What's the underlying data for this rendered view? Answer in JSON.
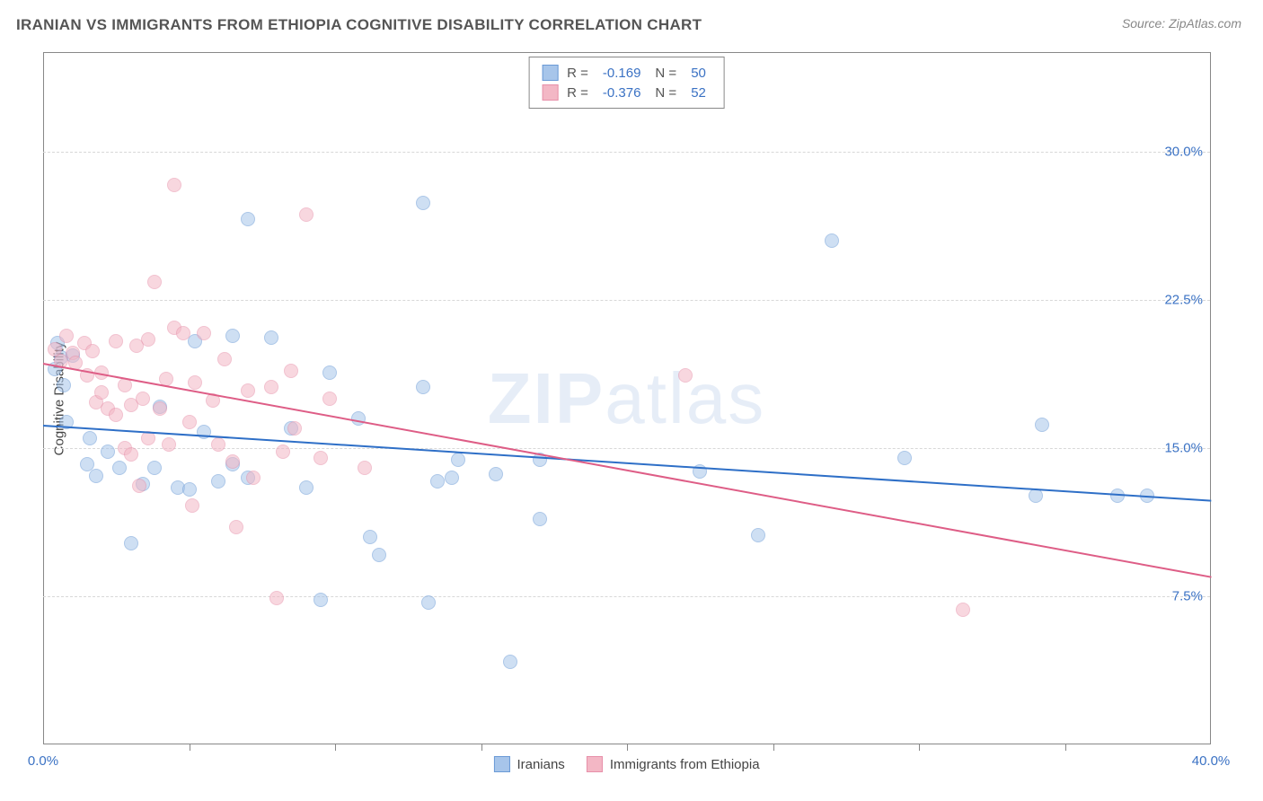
{
  "title": "IRANIAN VS IMMIGRANTS FROM ETHIOPIA COGNITIVE DISABILITY CORRELATION CHART",
  "source": "Source: ZipAtlas.com",
  "y_label": "Cognitive Disability",
  "watermark_bold": "ZIP",
  "watermark_rest": "atlas",
  "chart": {
    "type": "scatter",
    "xlim": [
      0,
      40
    ],
    "ylim": [
      0,
      35
    ],
    "x_ticks": [
      0,
      40
    ],
    "x_tick_labels": [
      "0.0%",
      "40.0%"
    ],
    "x_minor_ticks": [
      5,
      10,
      15,
      20,
      25,
      30,
      35
    ],
    "y_ticks": [
      7.5,
      15.0,
      22.5,
      30.0
    ],
    "y_tick_labels": [
      "7.5%",
      "15.0%",
      "22.5%",
      "30.0%"
    ],
    "grid_color": "#d8d8d8",
    "background": "#ffffff",
    "axis_color": "#888888",
    "marker_radius": 8,
    "marker_opacity": 0.55,
    "series": [
      {
        "name": "Iranians",
        "color_fill": "#a7c5ea",
        "color_stroke": "#6a9ad6",
        "R": "-0.169",
        "N": "50",
        "trend": {
          "x1": 0,
          "y1": 16.2,
          "x2": 40,
          "y2": 12.4,
          "color": "#2e6fc7",
          "width": 2
        },
        "points": [
          [
            0.4,
            19.0
          ],
          [
            0.5,
            20.3
          ],
          [
            0.6,
            19.6
          ],
          [
            0.7,
            18.2
          ],
          [
            1.0,
            19.7
          ],
          [
            0.8,
            16.3
          ],
          [
            1.5,
            14.2
          ],
          [
            1.6,
            15.5
          ],
          [
            1.8,
            13.6
          ],
          [
            2.2,
            14.8
          ],
          [
            2.6,
            14.0
          ],
          [
            3.0,
            10.2
          ],
          [
            3.4,
            13.2
          ],
          [
            3.8,
            14.0
          ],
          [
            4.0,
            17.1
          ],
          [
            4.6,
            13.0
          ],
          [
            5.0,
            12.9
          ],
          [
            5.2,
            20.4
          ],
          [
            5.5,
            15.8
          ],
          [
            6.0,
            13.3
          ],
          [
            6.5,
            20.7
          ],
          [
            6.5,
            14.2
          ],
          [
            7.0,
            13.5
          ],
          [
            7.0,
            26.6
          ],
          [
            7.8,
            20.6
          ],
          [
            8.5,
            16.0
          ],
          [
            9.0,
            13.0
          ],
          [
            9.5,
            7.3
          ],
          [
            9.8,
            18.8
          ],
          [
            10.8,
            16.5
          ],
          [
            11.2,
            10.5
          ],
          [
            11.5,
            9.6
          ],
          [
            13.0,
            27.4
          ],
          [
            13.0,
            18.1
          ],
          [
            13.2,
            7.2
          ],
          [
            13.5,
            13.3
          ],
          [
            14.0,
            13.5
          ],
          [
            14.2,
            14.4
          ],
          [
            15.5,
            13.7
          ],
          [
            16.0,
            4.2
          ],
          [
            17.0,
            14.4
          ],
          [
            17.0,
            11.4
          ],
          [
            22.5,
            13.8
          ],
          [
            24.5,
            10.6
          ],
          [
            27.0,
            25.5
          ],
          [
            29.5,
            14.5
          ],
          [
            34.2,
            16.2
          ],
          [
            34.0,
            12.6
          ],
          [
            36.8,
            12.6
          ],
          [
            37.8,
            12.6
          ]
        ]
      },
      {
        "name": "Immigrants from Ethiopia",
        "color_fill": "#f3b7c5",
        "color_stroke": "#e790a9",
        "R": "-0.376",
        "N": "52",
        "trend": {
          "x1": 0,
          "y1": 19.3,
          "x2": 40,
          "y2": 8.5,
          "color": "#de5d86",
          "width": 2
        },
        "points": [
          [
            0.4,
            20.0
          ],
          [
            0.6,
            19.4
          ],
          [
            0.8,
            20.7
          ],
          [
            1.0,
            19.8
          ],
          [
            1.1,
            19.3
          ],
          [
            1.4,
            20.3
          ],
          [
            1.5,
            18.7
          ],
          [
            1.7,
            19.9
          ],
          [
            1.8,
            17.3
          ],
          [
            2.0,
            18.8
          ],
          [
            2.0,
            17.8
          ],
          [
            2.2,
            17.0
          ],
          [
            2.5,
            20.4
          ],
          [
            2.5,
            16.7
          ],
          [
            2.8,
            18.2
          ],
          [
            2.8,
            15.0
          ],
          [
            3.0,
            17.2
          ],
          [
            3.2,
            20.2
          ],
          [
            3.3,
            13.1
          ],
          [
            3.4,
            17.5
          ],
          [
            3.6,
            20.5
          ],
          [
            3.6,
            15.5
          ],
          [
            3.8,
            23.4
          ],
          [
            4.0,
            17.0
          ],
          [
            4.2,
            18.5
          ],
          [
            4.3,
            15.2
          ],
          [
            4.5,
            21.1
          ],
          [
            4.5,
            28.3
          ],
          [
            4.8,
            20.8
          ],
          [
            5.0,
            16.3
          ],
          [
            5.1,
            12.1
          ],
          [
            5.2,
            18.3
          ],
          [
            5.5,
            20.8
          ],
          [
            5.8,
            17.4
          ],
          [
            6.0,
            15.2
          ],
          [
            6.2,
            19.5
          ],
          [
            6.5,
            14.3
          ],
          [
            6.6,
            11.0
          ],
          [
            7.0,
            17.9
          ],
          [
            7.2,
            13.5
          ],
          [
            7.8,
            18.1
          ],
          [
            8.0,
            7.4
          ],
          [
            8.2,
            14.8
          ],
          [
            8.5,
            18.9
          ],
          [
            8.6,
            16.0
          ],
          [
            9.0,
            26.8
          ],
          [
            9.5,
            14.5
          ],
          [
            9.8,
            17.5
          ],
          [
            11.0,
            14.0
          ],
          [
            22.0,
            18.7
          ],
          [
            31.5,
            6.8
          ],
          [
            3.0,
            14.7
          ]
        ]
      }
    ]
  },
  "legend": {
    "series_a_name": "Iranians",
    "series_b_name": "Immigrants from Ethiopia"
  }
}
